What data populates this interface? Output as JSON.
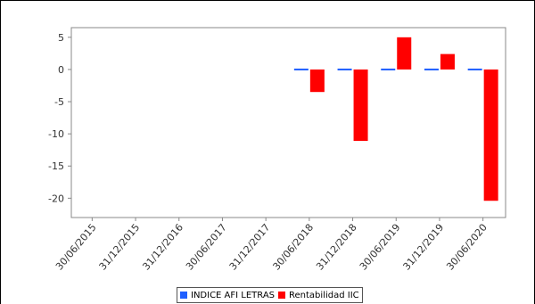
{
  "chart_data": {
    "type": "bar",
    "title": "",
    "xlabel": "",
    "ylabel": "",
    "categories": [
      "30/06/2015",
      "31/12/2015",
      "31/12/2016",
      "30/06/2017",
      "31/12/2017",
      "30/06/2018",
      "31/12/2018",
      "30/06/2019",
      "31/12/2019",
      "30/06/2020"
    ],
    "series": [
      {
        "name": "INDICE AFI LETRAS",
        "color": "#1f5fff",
        "values": [
          null,
          null,
          null,
          null,
          null,
          -0.2,
          -0.05,
          0.05,
          0.05,
          0.1
        ]
      },
      {
        "name": "Rentabilidad IIC",
        "color": "#ff0000",
        "values": [
          null,
          null,
          null,
          null,
          null,
          -3.5,
          -11.1,
          5.0,
          2.4,
          -20.4
        ]
      }
    ],
    "ylim": [
      -23,
      6.5
    ],
    "yticks": [
      5,
      0,
      -5,
      -10,
      -15,
      -20
    ],
    "grid": false,
    "legend": "bottom"
  }
}
